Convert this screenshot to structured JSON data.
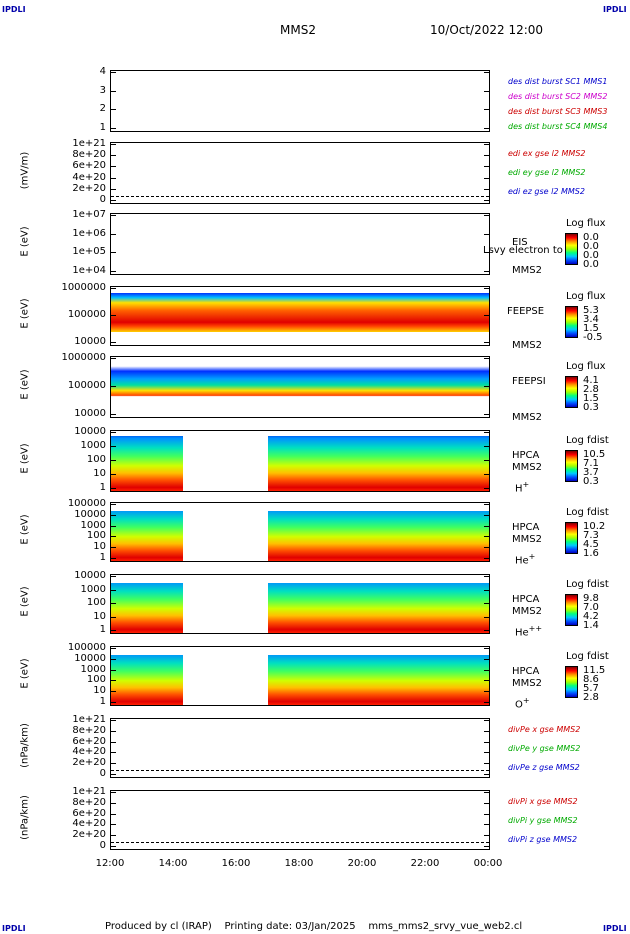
{
  "header": {
    "corner_label": "IPDLI",
    "spacecraft": "MMS2",
    "datetime": "10/Oct/2022 12:00"
  },
  "chart_data": [
    {
      "type": "line",
      "ylabel": "",
      "yticks": [
        "4",
        "3",
        "2",
        "1"
      ],
      "series": [
        {
          "name": "des dist burst SC1 MMS1",
          "color": "#0000cc"
        },
        {
          "name": "des dist burst SC2 MMS2",
          "color": "#cc00cc"
        },
        {
          "name": "des dist burst SC3 MMS3",
          "color": "#cc0000"
        },
        {
          "name": "des dist burst SC4 MMS4",
          "color": "#00aa00"
        }
      ]
    },
    {
      "type": "line",
      "ylabel": "(mV/m)",
      "yticks": [
        "1e+21",
        "8e+20",
        "6e+20",
        "4e+20",
        "2e+20",
        "0"
      ],
      "series": [
        {
          "name": "edi ex gse l2 MMS2",
          "color": "#cc0000"
        },
        {
          "name": "edi ey gse l2 MMS2",
          "color": "#00aa00"
        },
        {
          "name": "edi ez gse l2 MMS2",
          "color": "#0000cc"
        }
      ]
    },
    {
      "type": "heatmap",
      "ylabel": "E (eV)",
      "yticks": [
        "1e+07",
        "1e+06",
        "1e+05",
        "1e+04"
      ],
      "side_labels": [
        "EIS",
        "MMS2"
      ],
      "overlay_text": "Lsvy electron to",
      "colorbar": {
        "title": "Log flux",
        "values": [
          "0.0",
          "0.0",
          "0.0",
          "0.0"
        ]
      }
    },
    {
      "type": "heatmap",
      "ylabel": "E (eV)",
      "yticks": [
        "1000000",
        "100000",
        "10000"
      ],
      "side_labels": [
        "FEEPSE",
        "MMS2"
      ],
      "colorbar": {
        "title": "Log flux",
        "values": [
          "5.3",
          "3.4",
          "1.5",
          "-0.5"
        ]
      }
    },
    {
      "type": "heatmap",
      "ylabel": "E (eV)",
      "yticks": [
        "1000000",
        "100000",
        "10000"
      ],
      "side_labels": [
        "FEEPSI",
        "MMS2"
      ],
      "colorbar": {
        "title": "Log flux",
        "values": [
          "4.1",
          "2.8",
          "1.5",
          "0.3"
        ]
      }
    },
    {
      "type": "heatmap",
      "ylabel": "E (eV)",
      "yticks": [
        "10000",
        "1000",
        "100",
        "10",
        "1"
      ],
      "side_labels": [
        "HPCA",
        "MMS2",
        "H",
        "+"
      ],
      "colorbar": {
        "title": "Log fdist",
        "values": [
          "10.5",
          "7.1",
          "3.7",
          "0.3"
        ]
      }
    },
    {
      "type": "heatmap",
      "ylabel": "E (eV)",
      "yticks": [
        "100000",
        "10000",
        "1000",
        "100",
        "10",
        "1"
      ],
      "side_labels": [
        "HPCA",
        "MMS2",
        "He",
        "+"
      ],
      "colorbar": {
        "title": "Log fdist",
        "values": [
          "10.2",
          "7.3",
          "4.5",
          "1.6"
        ]
      }
    },
    {
      "type": "heatmap",
      "ylabel": "E (eV)",
      "yticks": [
        "10000",
        "1000",
        "100",
        "10",
        "1"
      ],
      "side_labels": [
        "HPCA",
        "MMS2",
        "He",
        "++"
      ],
      "colorbar": {
        "title": "Log fdist",
        "values": [
          "9.8",
          "7.0",
          "4.2",
          "1.4"
        ]
      }
    },
    {
      "type": "heatmap",
      "ylabel": "E (eV)",
      "yticks": [
        "100000",
        "10000",
        "1000",
        "100",
        "10",
        "1"
      ],
      "side_labels": [
        "HPCA",
        "MMS2",
        "O",
        "+"
      ],
      "colorbar": {
        "title": "Log fdist",
        "values": [
          "11.5",
          "8.6",
          "5.7",
          "2.8"
        ]
      }
    },
    {
      "type": "line",
      "ylabel": "(nPa/km)",
      "yticks": [
        "1e+21",
        "8e+20",
        "6e+20",
        "4e+20",
        "2e+20",
        "0"
      ],
      "series": [
        {
          "name": "divPe x gse MMS2",
          "color": "#cc0000"
        },
        {
          "name": "divPe y gse MMS2",
          "color": "#00aa00"
        },
        {
          "name": "divPe z gse MMS2",
          "color": "#0000cc"
        }
      ]
    },
    {
      "type": "line",
      "ylabel": "(nPa/km)",
      "yticks": [
        "1e+21",
        "8e+20",
        "6e+20",
        "4e+20",
        "2e+20",
        "0"
      ],
      "series": [
        {
          "name": "divPi x gse MMS2",
          "color": "#cc0000"
        },
        {
          "name": "divPi y gse MMS2",
          "color": "#00aa00"
        },
        {
          "name": "divPi z gse MMS2",
          "color": "#0000cc"
        }
      ]
    }
  ],
  "xaxis": {
    "ticks": [
      "12:00",
      "14:00",
      "16:00",
      "18:00",
      "20:00",
      "22:00",
      "00:00"
    ]
  },
  "footer": {
    "produced_by": "Produced by cl (IRAP)",
    "printing_date": "Printing date: 03/Jan/2025",
    "filename": "mms_mms2_srvy_vue_web2.cl"
  }
}
